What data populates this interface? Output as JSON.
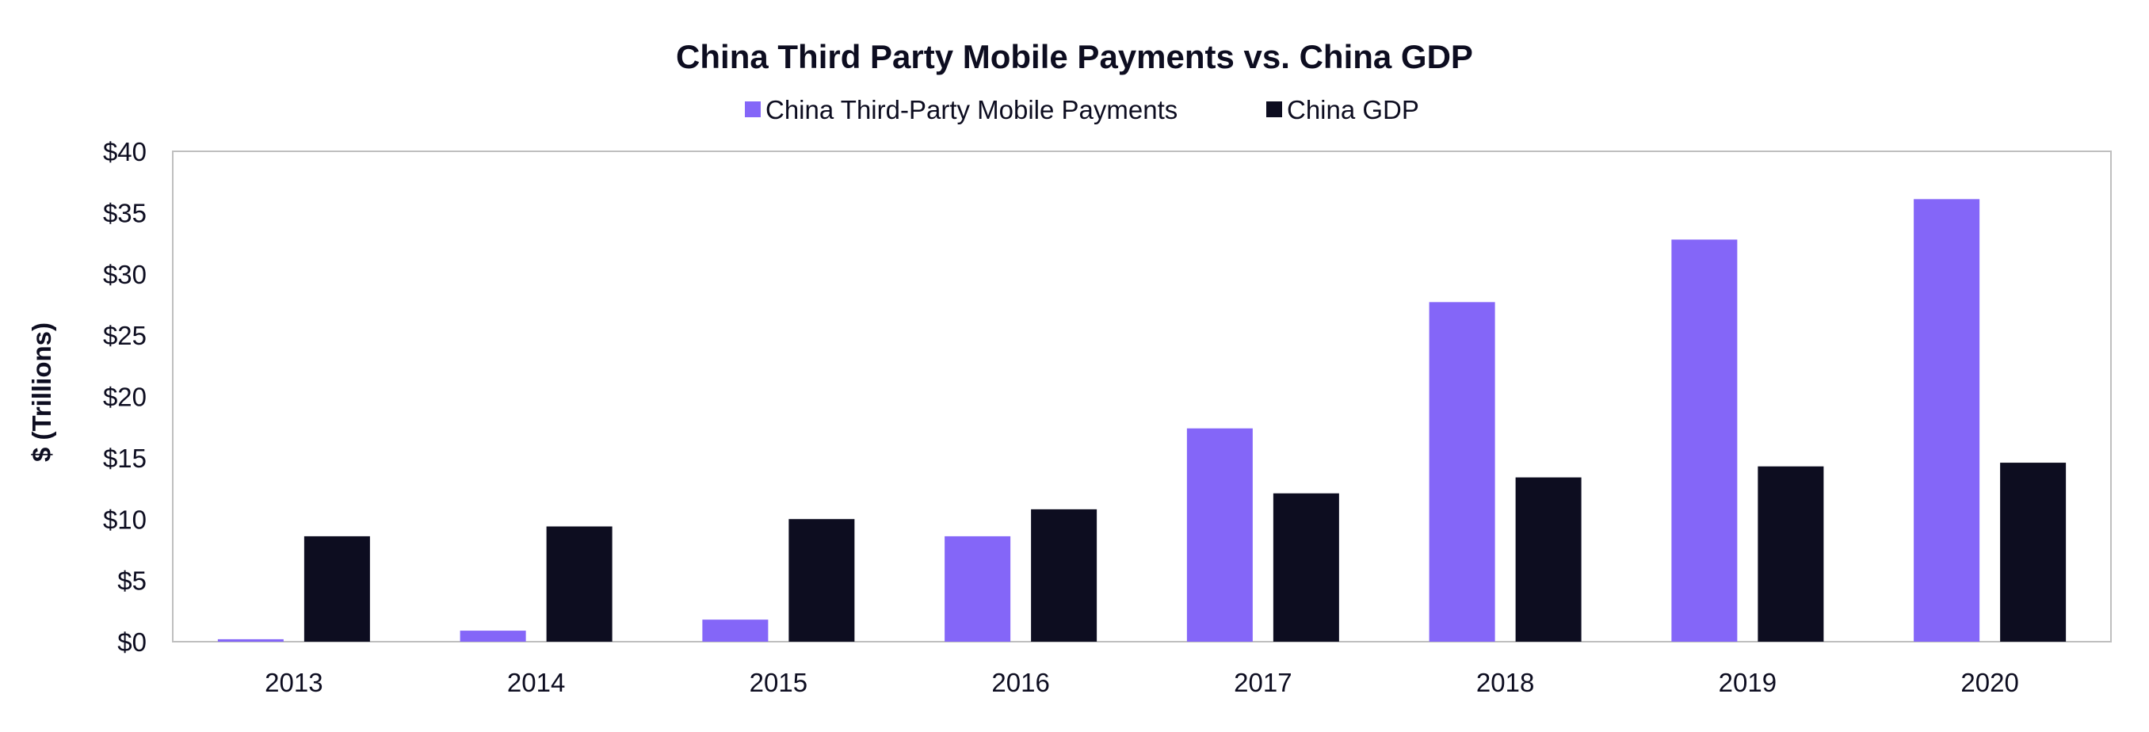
{
  "chart_data": {
    "type": "bar",
    "title": "China Third Party Mobile Payments vs. China GDP",
    "xlabel": "",
    "ylabel": "$ (Trillions)",
    "ylim": [
      0,
      40
    ],
    "y_ticks": [
      0,
      5,
      10,
      15,
      20,
      25,
      30,
      35,
      40
    ],
    "y_tick_prefix": "$",
    "grid": false,
    "legend_position": "top-center",
    "categories": [
      "2013",
      "2014",
      "2015",
      "2016",
      "2017",
      "2018",
      "2019",
      "2020"
    ],
    "series": [
      {
        "name": "China Third-Party Mobile Payments",
        "color": "#8466f8",
        "values": [
          0.2,
          0.9,
          1.8,
          8.6,
          17.4,
          27.7,
          32.8,
          36.1
        ]
      },
      {
        "name": "China GDP",
        "color": "#0d0d20",
        "values": [
          8.6,
          9.4,
          10.0,
          10.8,
          12.1,
          13.4,
          14.3,
          14.6
        ]
      }
    ]
  },
  "colors": {
    "axis": "#bfbfbf",
    "text": "#0d0d20"
  }
}
